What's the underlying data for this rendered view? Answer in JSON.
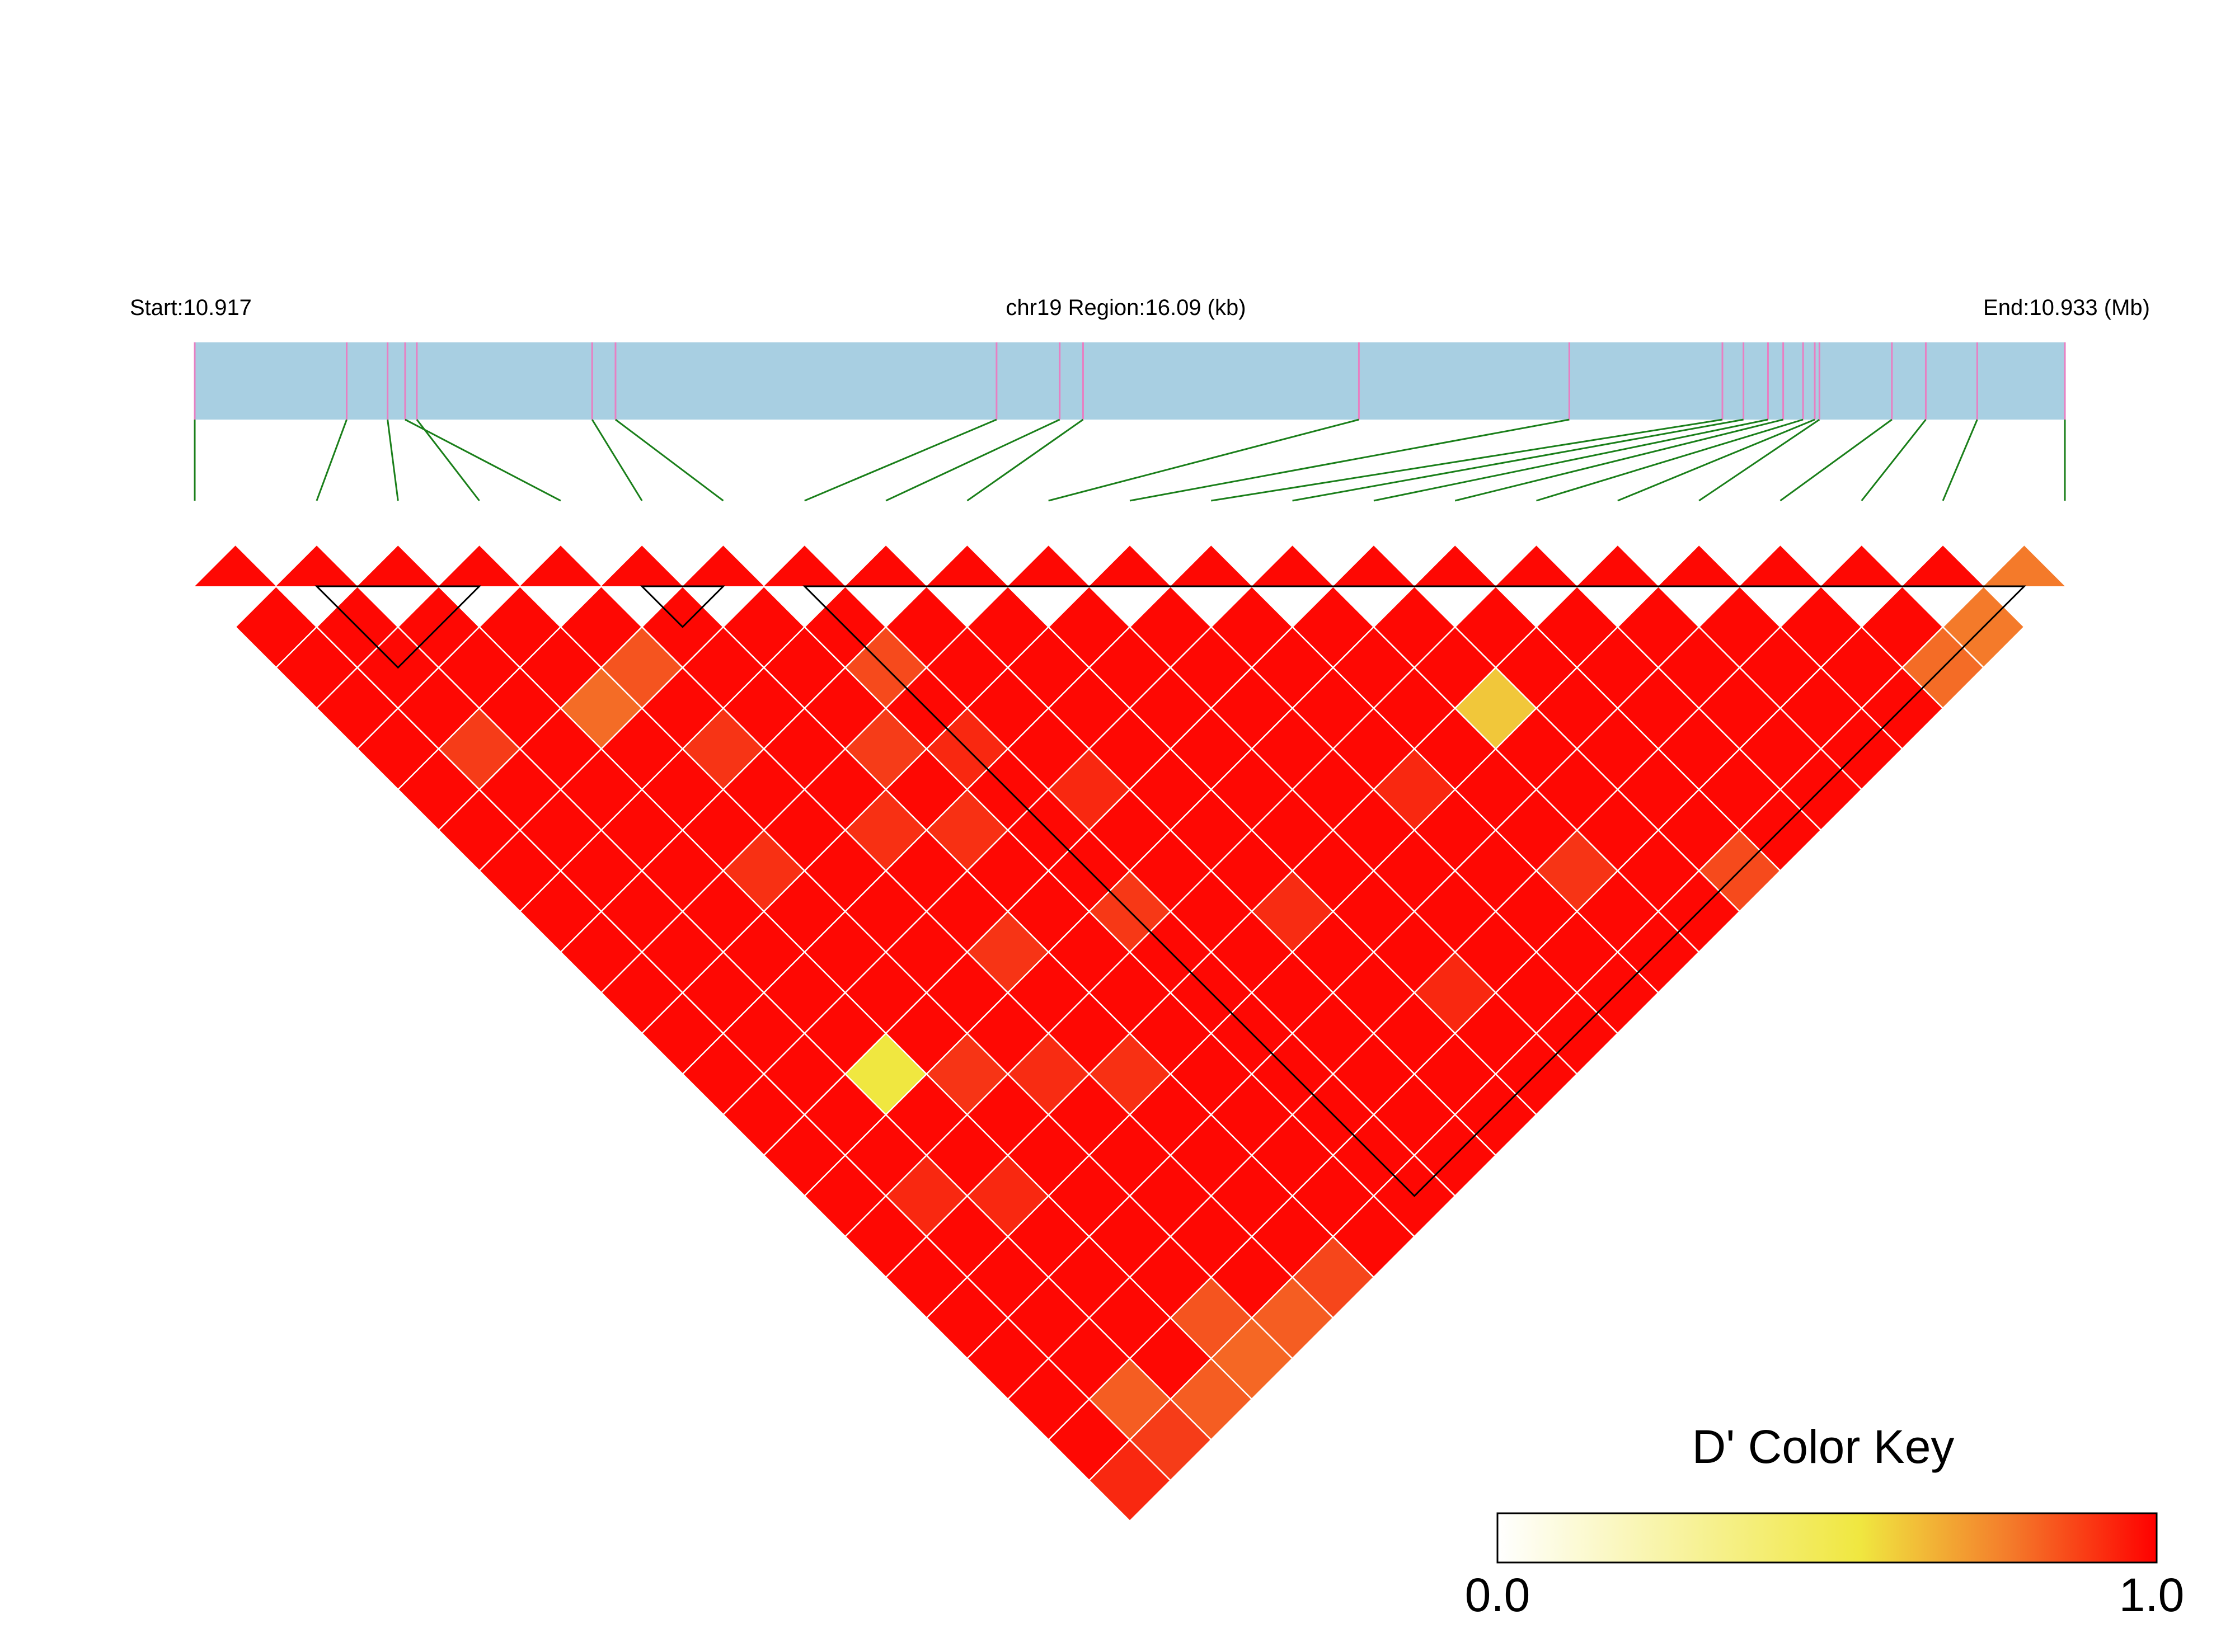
{
  "header": {
    "start_label": "Start:10.917",
    "region_label": "chr19 Region:16.09 (kb)",
    "end_label": "End:10.933 (Mb)"
  },
  "colors": {
    "track_fill": "#a8cfe2",
    "snp_tick": "#e87fc2",
    "connector": "#1a7f1a",
    "cell_border": "#ffffff",
    "block_outline": "#000000",
    "gradient_low": "#ffffff",
    "gradient_mid": "#f0e740",
    "gradient_high": "#ff0000"
  },
  "chart_data": {
    "type": "heatmap",
    "title": "",
    "measure": "D'",
    "chromosome": "chr19",
    "region_kb": 16.09,
    "start_mb": 10.917,
    "end_mb": 10.933,
    "snp_count": 23,
    "snp_positions_mb": [
      10.917,
      10.9183,
      10.91865,
      10.9189,
      10.9188,
      10.9204,
      10.9206,
      10.92386,
      10.9244,
      10.9246,
      10.92696,
      10.92876,
      10.93007,
      10.93025,
      10.93046,
      10.93059,
      10.93076,
      10.93086,
      10.9309,
      10.93152,
      10.93181,
      10.93225,
      10.933
    ],
    "default_dprime": 0.98,
    "notable_dprime": [
      {
        "i": 1,
        "j": 2,
        "value": 0.98
      },
      {
        "i": 5,
        "j": 6,
        "value": 0.98
      },
      {
        "i": 21,
        "j": 22,
        "value": 0.72
      },
      {
        "i": 4,
        "j": 6,
        "value": 0.8
      },
      {
        "i": 7,
        "j": 9,
        "value": 0.82
      },
      {
        "i": 20,
        "j": 22,
        "value": 0.75
      },
      {
        "i": 3,
        "j": 6,
        "value": 0.75
      },
      {
        "i": 1,
        "j": 5,
        "value": 0.85
      },
      {
        "i": 6,
        "j": 10,
        "value": 0.85
      },
      {
        "i": 4,
        "j": 8,
        "value": 0.87
      },
      {
        "i": 3,
        "j": 10,
        "value": 0.88
      },
      {
        "i": 15,
        "j": 22,
        "value": 0.82
      },
      {
        "i": 7,
        "j": 15,
        "value": 0.86
      },
      {
        "i": 5,
        "j": 14,
        "value": 0.87
      },
      {
        "i": 3,
        "j": 15,
        "value": 0.87
      },
      {
        "i": 13,
        "j": 20,
        "value": 0.87
      },
      {
        "i": 9,
        "j": 17,
        "value": 0.89
      },
      {
        "i": 1,
        "j": 16,
        "value": 0.9
      },
      {
        "i": 2,
        "j": 14,
        "value": 0.55
      },
      {
        "i": 14,
        "j": 17,
        "value": 0.6
      },
      {
        "i": 5,
        "j": 11,
        "value": 0.88
      },
      {
        "i": 7,
        "j": 11,
        "value": 0.9
      },
      {
        "i": 6,
        "j": 12,
        "value": 0.88
      },
      {
        "i": 8,
        "j": 13,
        "value": 0.9
      },
      {
        "i": 4,
        "j": 16,
        "value": 0.89
      },
      {
        "i": 5,
        "j": 17,
        "value": 0.88
      },
      {
        "i": 2,
        "j": 17,
        "value": 0.9
      },
      {
        "i": 12,
        "j": 17,
        "value": 0.9
      },
      {
        "i": 0,
        "j": 22,
        "value": 0.9
      },
      {
        "i": 1,
        "j": 22,
        "value": 0.85
      },
      {
        "i": 2,
        "j": 22,
        "value": 0.78
      },
      {
        "i": 3,
        "j": 22,
        "value": 0.76
      },
      {
        "i": 4,
        "j": 22,
        "value": 0.78
      },
      {
        "i": 5,
        "j": 22,
        "value": 0.83
      },
      {
        "i": 1,
        "j": 21,
        "value": 0.78
      },
      {
        "i": 3,
        "j": 21,
        "value": 0.8
      },
      {
        "i": 10,
        "j": 20,
        "value": 0.9
      }
    ],
    "haplotype_blocks": [
      [
        1,
        3
      ],
      [
        5,
        6
      ],
      [
        7,
        22
      ]
    ]
  },
  "legend": {
    "title": "D' Color Key",
    "min_label": "0.0",
    "max_label": "1.0",
    "range": [
      0.0,
      1.0
    ]
  }
}
